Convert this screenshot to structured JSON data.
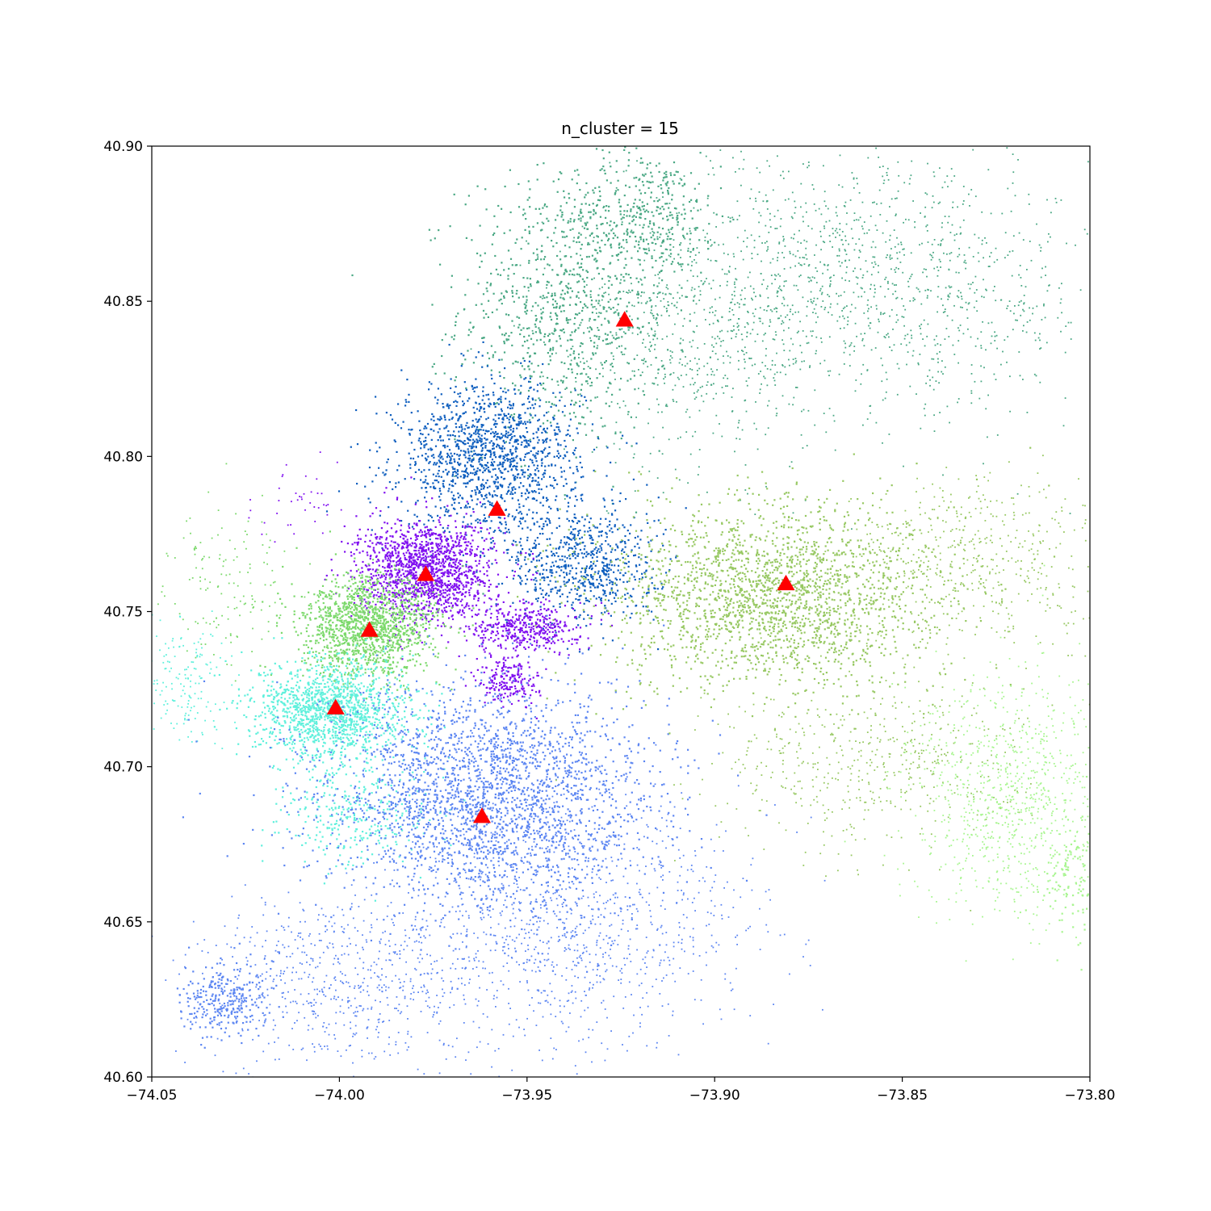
{
  "chart_data": {
    "type": "scatter",
    "title": "n_cluster = 15",
    "xlabel": "",
    "ylabel": "",
    "xlim": [
      -74.05,
      -73.8
    ],
    "ylim": [
      40.6,
      40.9
    ],
    "x_ticks": [
      -74.05,
      -74.0,
      -73.95,
      -73.9,
      -73.85,
      -73.8
    ],
    "x_tick_labels": [
      "−74.05",
      "−74.00",
      "−73.95",
      "−73.90",
      "−73.85",
      "−73.80"
    ],
    "y_ticks": [
      40.6,
      40.65,
      40.7,
      40.75,
      40.8,
      40.85,
      40.9
    ],
    "y_tick_labels": [
      "40.60",
      "40.65",
      "40.70",
      "40.75",
      "40.80",
      "40.85",
      "40.90"
    ],
    "grid": false,
    "legend": "none",
    "centroid_marker": "triangle",
    "centroid_color": "#ff0000",
    "centroids": [
      {
        "x": -73.924,
        "y": 40.844
      },
      {
        "x": -73.958,
        "y": 40.783
      },
      {
        "x": -73.977,
        "y": 40.762
      },
      {
        "x": -73.992,
        "y": 40.744
      },
      {
        "x": -74.001,
        "y": 40.719
      },
      {
        "x": -73.962,
        "y": 40.684
      },
      {
        "x": -73.881,
        "y": 40.759
      }
    ],
    "clusters": [
      {
        "color": "#4aa884",
        "regions": [
          {
            "cx": -73.94,
            "cy": 40.848,
            "sx": 0.014,
            "sy": 0.022,
            "n": 900,
            "dense": true
          },
          {
            "cx": -73.918,
            "cy": 40.878,
            "sx": 0.01,
            "sy": 0.01,
            "n": 350,
            "dense": true
          },
          {
            "cx": -73.905,
            "cy": 40.84,
            "sx": 0.02,
            "sy": 0.022,
            "n": 700,
            "dense": false
          },
          {
            "cx": -73.87,
            "cy": 40.86,
            "sx": 0.025,
            "sy": 0.02,
            "n": 700,
            "dense": false
          },
          {
            "cx": -73.835,
            "cy": 40.85,
            "sx": 0.018,
            "sy": 0.02,
            "n": 400,
            "dense": false
          }
        ]
      },
      {
        "color": "#0f5fbf",
        "regions": [
          {
            "cx": -73.96,
            "cy": 40.8,
            "sx": 0.012,
            "sy": 0.012,
            "n": 1400,
            "dense": true
          },
          {
            "cx": -73.935,
            "cy": 40.765,
            "sx": 0.01,
            "sy": 0.01,
            "n": 700,
            "dense": true
          }
        ]
      },
      {
        "color": "#8010f0",
        "regions": [
          {
            "cx": -73.977,
            "cy": 40.763,
            "sx": 0.009,
            "sy": 0.008,
            "n": 1500,
            "dense": true
          },
          {
            "cx": -73.95,
            "cy": 40.745,
            "sx": 0.007,
            "sy": 0.004,
            "n": 400,
            "dense": true
          },
          {
            "cx": -73.955,
            "cy": 40.728,
            "sx": 0.004,
            "sy": 0.004,
            "n": 200,
            "dense": true
          },
          {
            "cx": -74.01,
            "cy": 40.785,
            "sx": 0.006,
            "sy": 0.006,
            "n": 40,
            "dense": false
          }
        ]
      },
      {
        "color": "#7cd96c",
        "regions": [
          {
            "cx": -73.992,
            "cy": 40.745,
            "sx": 0.009,
            "sy": 0.008,
            "n": 1400,
            "dense": true
          },
          {
            "cx": -74.03,
            "cy": 40.76,
            "sx": 0.008,
            "sy": 0.012,
            "n": 140,
            "dense": false
          }
        ]
      },
      {
        "color": "#5ff0dc",
        "regions": [
          {
            "cx": -74.002,
            "cy": 40.718,
            "sx": 0.01,
            "sy": 0.008,
            "n": 1400,
            "dense": true
          },
          {
            "cx": -73.995,
            "cy": 40.684,
            "sx": 0.01,
            "sy": 0.008,
            "n": 300,
            "dense": true
          },
          {
            "cx": -74.042,
            "cy": 40.728,
            "sx": 0.006,
            "sy": 0.01,
            "n": 160,
            "dense": false
          }
        ]
      },
      {
        "color": "#5c86f2",
        "regions": [
          {
            "cx": -73.96,
            "cy": 40.69,
            "sx": 0.022,
            "sy": 0.018,
            "n": 2600,
            "dense": true
          },
          {
            "cx": -73.94,
            "cy": 40.65,
            "sx": 0.025,
            "sy": 0.02,
            "n": 1100,
            "dense": false
          },
          {
            "cx": -74.0,
            "cy": 40.63,
            "sx": 0.02,
            "sy": 0.014,
            "n": 600,
            "dense": false
          },
          {
            "cx": -74.03,
            "cy": 40.625,
            "sx": 0.006,
            "sy": 0.006,
            "n": 300,
            "dense": true
          }
        ]
      },
      {
        "color": "#97c862",
        "regions": [
          {
            "cx": -73.885,
            "cy": 40.755,
            "sx": 0.022,
            "sy": 0.015,
            "n": 2200,
            "dense": true
          },
          {
            "cx": -73.83,
            "cy": 40.765,
            "sx": 0.018,
            "sy": 0.014,
            "n": 500,
            "dense": false
          },
          {
            "cx": -73.86,
            "cy": 40.7,
            "sx": 0.02,
            "sy": 0.014,
            "n": 500,
            "dense": false
          }
        ]
      },
      {
        "color": "#a8f590",
        "regions": [
          {
            "cx": -73.82,
            "cy": 40.69,
            "sx": 0.014,
            "sy": 0.02,
            "n": 900,
            "dense": false
          },
          {
            "cx": -73.805,
            "cy": 40.665,
            "sx": 0.004,
            "sy": 0.01,
            "n": 120,
            "dense": true
          }
        ]
      }
    ]
  }
}
